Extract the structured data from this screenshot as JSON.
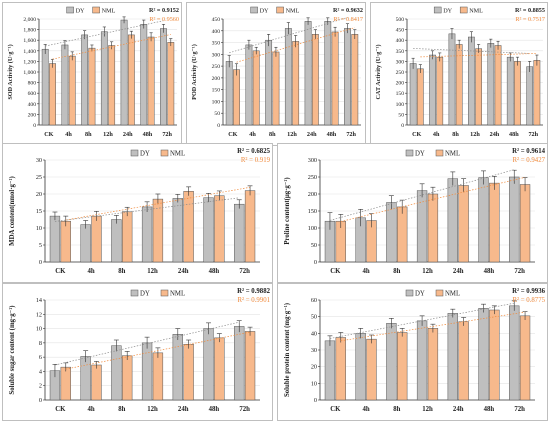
{
  "colors": {
    "dy": "#bfbfbf",
    "nml": "#f7b98c",
    "grid": "#e3e3e3",
    "axis": "#333333",
    "r2_nml": "#f08a3c"
  },
  "chart_data": [
    {
      "id": "sod",
      "type": "bar",
      "ylabel": "SOD Activity (U·g⁻¹)",
      "ylim": [
        0,
        2000
      ],
      "yticks": [
        0,
        200,
        400,
        600,
        800,
        1000,
        1200,
        1400,
        1600,
        1800,
        2000
      ],
      "ytick_labels": [
        "0",
        "200",
        "400",
        "600",
        "800",
        "1,000",
        "1,200",
        "1,400",
        "1,600",
        "1,800",
        "2,000"
      ],
      "categories": [
        "CK",
        "4h",
        "8h",
        "12h",
        "24h",
        "48h",
        "72h"
      ],
      "series": [
        {
          "name": "DY",
          "values": [
            1430,
            1510,
            1700,
            1760,
            1980,
            1900,
            1820
          ],
          "errors": [
            90,
            80,
            80,
            90,
            60,
            80,
            80
          ]
        },
        {
          "name": "NML",
          "values": [
            1160,
            1300,
            1450,
            1500,
            1700,
            1660,
            1560
          ],
          "errors": [
            80,
            80,
            60,
            70,
            70,
            80,
            70
          ]
        }
      ],
      "r2": [
        "R² = 0.9152",
        "R² = 0.9560"
      ],
      "legend": "top",
      "grid": true
    },
    {
      "id": "pod",
      "type": "bar",
      "ylabel": "POD Activity (U·g⁻¹)",
      "ylim": [
        0,
        450
      ],
      "yticks": [
        0,
        50,
        100,
        150,
        200,
        250,
        300,
        350,
        400,
        450
      ],
      "ytick_labels": [
        "0",
        "50",
        "100",
        "150",
        "200",
        "250",
        "300",
        "350",
        "400",
        "450"
      ],
      "categories": [
        "CK",
        "4h",
        "8h",
        "12h",
        "24h",
        "48h",
        "72h"
      ],
      "series": [
        {
          "name": "DY",
          "values": [
            270,
            340,
            360,
            410,
            440,
            440,
            410
          ],
          "errors": [
            25,
            20,
            25,
            25,
            15,
            15,
            20
          ]
        },
        {
          "name": "NML",
          "values": [
            235,
            315,
            310,
            355,
            385,
            395,
            385
          ],
          "errors": [
            25,
            15,
            20,
            25,
            20,
            20,
            20
          ]
        }
      ],
      "r2": [
        "R² = 0.9632",
        "R² = 0.8417"
      ],
      "legend": "top",
      "grid": true
    },
    {
      "id": "cat",
      "type": "bar",
      "ylabel": "CAT Activity (U·g⁻¹)",
      "ylim": [
        0,
        500
      ],
      "yticks": [
        0,
        50,
        100,
        150,
        200,
        250,
        300,
        350,
        400,
        450,
        500
      ],
      "ytick_labels": [
        "0",
        "50",
        "100",
        "150",
        "200",
        "250",
        "300",
        "350",
        "400",
        "450",
        "500"
      ],
      "categories": [
        "CK",
        "4h",
        "8h",
        "12h",
        "24h",
        "48h",
        "72h"
      ],
      "series": [
        {
          "name": "DY",
          "values": [
            290,
            330,
            430,
            415,
            385,
            320,
            275
          ],
          "errors": [
            25,
            20,
            25,
            25,
            20,
            20,
            25
          ]
        },
        {
          "name": "NML",
          "values": [
            265,
            320,
            380,
            360,
            375,
            300,
            305
          ],
          "errors": [
            20,
            20,
            20,
            20,
            20,
            20,
            25
          ]
        }
      ],
      "r2": [
        "R² = 0.8855",
        "R² = 0.7517"
      ],
      "legend": "top",
      "grid": true
    },
    {
      "id": "mda",
      "type": "bar",
      "ylabel": "MDA content(nmol·g⁻¹)",
      "ylim": [
        0,
        30
      ],
      "yticks": [
        0,
        5,
        10,
        15,
        20,
        25,
        30
      ],
      "ytick_labels": [
        "0",
        "5",
        "10",
        "15",
        "20",
        "25",
        "30"
      ],
      "categories": [
        "CK",
        "4h",
        "8h",
        "12h",
        "24h",
        "48h",
        "72h"
      ],
      "series": [
        {
          "name": "DY",
          "values": [
            13.5,
            11.0,
            12.5,
            16.2,
            18.7,
            18.9,
            17.0
          ],
          "errors": [
            1.2,
            1.2,
            1.2,
            1.5,
            1.2,
            1.3,
            1.3
          ]
        },
        {
          "name": "NML",
          "values": [
            12.0,
            13.5,
            14.8,
            18.5,
            20.8,
            19.5,
            21.0
          ],
          "errors": [
            1.5,
            1.4,
            1.3,
            1.5,
            1.3,
            1.4,
            1.4
          ]
        }
      ],
      "r2": [
        "R² = 0.6825",
        "R² = 0.919"
      ],
      "legend": "top",
      "grid": true
    },
    {
      "id": "proline",
      "type": "bar",
      "ylabel": "Proline content(μg·g⁻¹)",
      "ylim": [
        0,
        300
      ],
      "yticks": [
        0,
        50,
        100,
        150,
        200,
        250,
        300
      ],
      "ytick_labels": [
        "0",
        "50",
        "100",
        "150",
        "200",
        "250",
        "300"
      ],
      "categories": [
        "CK",
        "4h",
        "8h",
        "12h",
        "24h",
        "48h",
        "72h"
      ],
      "series": [
        {
          "name": "DY",
          "values": [
            120,
            130,
            175,
            210,
            245,
            248,
            250
          ],
          "errors": [
            25,
            25,
            20,
            20,
            20,
            20,
            20
          ]
        },
        {
          "name": "NML",
          "values": [
            120,
            122,
            162,
            200,
            225,
            232,
            228
          ],
          "errors": [
            20,
            20,
            20,
            20,
            20,
            20,
            20
          ]
        }
      ],
      "r2": [
        "R² = 0.9614",
        "R² = 0.9427"
      ],
      "legend": "top",
      "grid": true
    },
    {
      "id": "sugar",
      "type": "bar",
      "ylabel": "Soluble sugar content (mg·g⁻¹)",
      "ylim": [
        0,
        14
      ],
      "yticks": [
        0,
        2,
        4,
        6,
        8,
        10,
        12,
        14
      ],
      "ytick_labels": [
        "0",
        "2",
        "4",
        "6",
        "8",
        "10",
        "12",
        "14"
      ],
      "categories": [
        "CK",
        "4h",
        "8h",
        "12h",
        "24h",
        "48h",
        "72h"
      ],
      "series": [
        {
          "name": "DY",
          "values": [
            4.1,
            6.1,
            7.6,
            8.0,
            9.2,
            10.0,
            10.3
          ],
          "errors": [
            0.9,
            0.8,
            0.8,
            0.8,
            0.8,
            0.8,
            0.8
          ]
        },
        {
          "name": "NML",
          "values": [
            4.6,
            4.9,
            6.2,
            6.6,
            7.8,
            8.7,
            9.6
          ],
          "errors": [
            0.6,
            0.5,
            0.6,
            0.7,
            0.6,
            0.6,
            0.6
          ]
        }
      ],
      "r2": [
        "R² = 0.9882",
        "R² = 0.9901"
      ],
      "legend": "top",
      "grid": true
    },
    {
      "id": "protein",
      "type": "bar",
      "ylabel": "Soluble protein content (mg·g⁻¹)",
      "ylim": [
        0,
        60
      ],
      "yticks": [
        0,
        10,
        20,
        30,
        40,
        50,
        60
      ],
      "ytick_labels": [
        "0",
        "10",
        "20",
        "30",
        "40",
        "50",
        "60"
      ],
      "categories": [
        "CK",
        "4h",
        "8h",
        "12h",
        "24h",
        "48h",
        "72h"
      ],
      "series": [
        {
          "name": "DY",
          "values": [
            35.5,
            40.0,
            46.0,
            47.5,
            52.0,
            55.0,
            56.5
          ],
          "errors": [
            3,
            3,
            3,
            3,
            2.5,
            2.5,
            3
          ]
        },
        {
          "name": "NML",
          "values": [
            37.5,
            36.5,
            40.5,
            43.0,
            47.0,
            54.0,
            50.5
          ],
          "errors": [
            3,
            2.5,
            2.5,
            2.5,
            2.5,
            2.5,
            2.5
          ]
        }
      ],
      "r2": [
        "R² = 0.9936",
        "R² = 0.8775"
      ],
      "legend": "top",
      "grid": true
    }
  ]
}
